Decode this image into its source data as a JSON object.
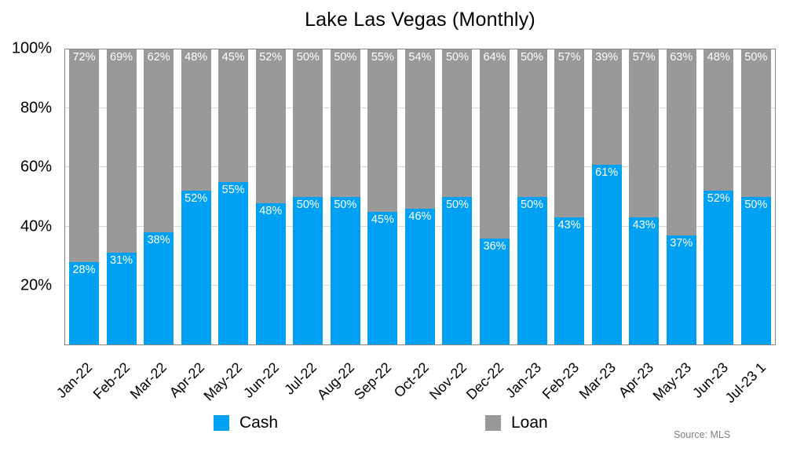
{
  "title": "Lake Las Vegas (Monthly)",
  "source_note": "Source: MLS",
  "legend": {
    "cash": "Cash",
    "loan": "Loan"
  },
  "colors": {
    "cash": "#00A1F2",
    "loan": "#999999",
    "gridline": "#D8D8D8",
    "plot_border": "#858585",
    "bar_label_text": "#FFFFFF",
    "source_text": "#7F7F7F"
  },
  "y_axis": {
    "ticks": [
      {
        "label": "100%",
        "value": 100
      },
      {
        "label": "80%",
        "value": 80
      },
      {
        "label": "60%",
        "value": 60
      },
      {
        "label": "40%",
        "value": 40
      },
      {
        "label": "20%",
        "value": 20
      }
    ]
  },
  "chart_data": {
    "type": "bar",
    "stacked": true,
    "title": "Lake Las Vegas (Monthly)",
    "xlabel": "",
    "ylabel": "",
    "ylim": [
      0,
      100
    ],
    "y_tick_interval": 20,
    "grid": true,
    "legend_position": "bottom",
    "bar_label_format": "percent",
    "categories": [
      "Jan-22",
      "Feb-22",
      "Mar-22",
      "Apr-22",
      "May-22",
      "Jun-22",
      "Jul-22",
      "Aug-22",
      "Sep-22",
      "Oct-22",
      "Nov-22",
      "Dec-22",
      "Jan-23",
      "Feb-23",
      "Mar-23",
      "Apr-23",
      "May-23",
      "Jun-23",
      "Jul-23 1"
    ],
    "series": [
      {
        "name": "Cash",
        "color": "#00A1F2",
        "values": [
          28,
          31,
          38,
          52,
          55,
          48,
          50,
          50,
          45,
          46,
          50,
          36,
          50,
          43,
          61,
          43,
          37,
          52,
          50
        ]
      },
      {
        "name": "Loan",
        "color": "#999999",
        "values": [
          72,
          69,
          62,
          48,
          45,
          52,
          50,
          50,
          55,
          54,
          50,
          64,
          50,
          57,
          39,
          57,
          63,
          48,
          50
        ]
      }
    ]
  }
}
